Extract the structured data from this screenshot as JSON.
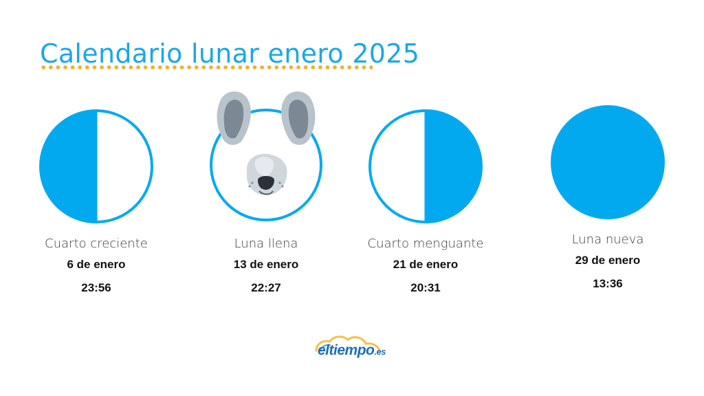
{
  "title": "Calendario lunar enero 2025",
  "colors": {
    "accent": "#1ba6e8",
    "moon_fill": "#03a9ee",
    "dots": "#f2ae2c",
    "logo_text": "#1b6fb5",
    "logo_cloud": "#f3c14b"
  },
  "phases": [
    {
      "name": "Cuarto creciente",
      "date": "6 de enero",
      "time": "23:56",
      "icon": "first-quarter-moon-icon"
    },
    {
      "name": "Luna llena",
      "date": "13 de enero",
      "time": "22:27",
      "icon": "full-moon-dog-icon"
    },
    {
      "name": "Cuarto menguante",
      "date": "21 de enero",
      "time": "20:31",
      "icon": "last-quarter-moon-icon"
    },
    {
      "name": "Luna nueva",
      "date": "29 de enero",
      "time": "13:36",
      "icon": "new-moon-icon"
    }
  ],
  "logo": {
    "text": "eltiempo",
    "suffix": ".es"
  }
}
